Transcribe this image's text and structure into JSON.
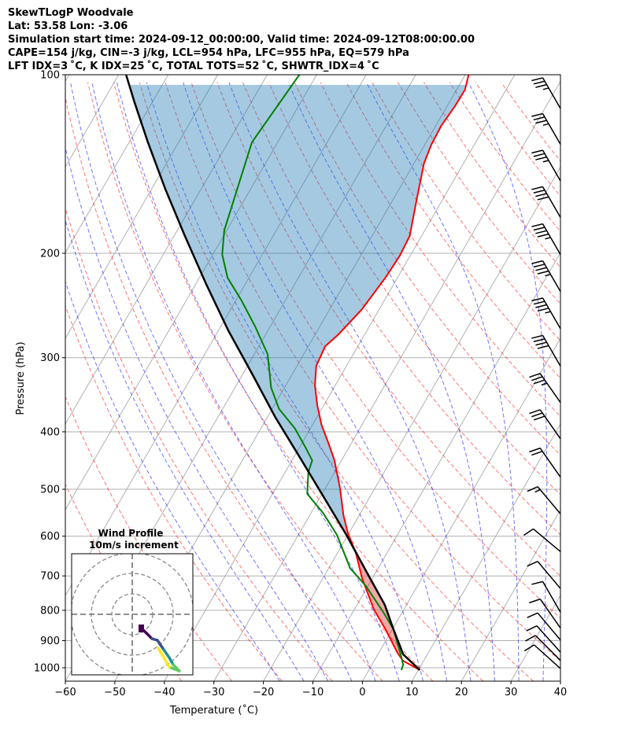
{
  "header": {
    "title": "SkewTLogP Woodvale",
    "location": "Lat: 53.58   Lon: -3.06",
    "times": "Simulation start time: 2024-09-12_00:00:00, Valid time: 2024-09-12T08:00:00.00",
    "indices1": "CAPE=154 j/kg, CIN=-3 j/kg, LCL=954 hPa, LFC=955 hPa, EQ=579 hPa",
    "indices2": "LFT IDX=3 ˚C, K IDX=25 ˚C, TOTAL TOTS=52 ˚C, SHWTR_IDX=4 ˚C"
  },
  "chart_data": {
    "type": "skewt",
    "xlabel": "Temperature (˚C)",
    "ylabel": "Pressure (hPa)",
    "xlim": [
      -60,
      40
    ],
    "ylim": [
      1053,
      100
    ],
    "xticks": [
      -60,
      -50,
      -40,
      -30,
      -20,
      -10,
      0,
      10,
      20,
      30,
      40
    ],
    "xtick_labels": [
      "−60",
      "−50",
      "−40",
      "−30",
      "−20",
      "−10",
      "0",
      "10",
      "20",
      "30",
      "40"
    ],
    "yticks": [
      100,
      200,
      300,
      400,
      500,
      600,
      700,
      800,
      900,
      1000
    ],
    "ytick_labels": [
      "100",
      "200",
      "300",
      "400",
      "500",
      "600",
      "700",
      "800",
      "900",
      "1000"
    ],
    "skew_degrees": 30,
    "colors": {
      "temperature": "#ff0000",
      "dewpoint": "#008000",
      "parcel": "#000000",
      "cape": "#1f77b4",
      "cin": "#d62728",
      "isotherm": "#b0b0b0",
      "dry_adiabat": "#ff0000",
      "moist_adiabat": "#0000ff"
    },
    "temperature": {
      "p": [
        1009,
        973,
        944,
        861,
        798,
        706,
        640,
        593,
        553,
        497,
        447,
        420,
        389,
        361,
        334,
        310,
        287,
        274,
        249,
        219,
        202,
        187,
        161,
        141,
        131,
        122,
        113,
        106,
        100
      ],
      "T": [
        10.3,
        5.8,
        3.8,
        -1.4,
        -6.0,
        -12.1,
        -16.3,
        -20.2,
        -23.2,
        -27.1,
        -31.4,
        -34.4,
        -38.2,
        -41.3,
        -44.1,
        -46.1,
        -46.6,
        -45.3,
        -43.5,
        -42.4,
        -42.1,
        -42.4,
        -45.4,
        -48.0,
        -48.7,
        -48.9,
        -48.4,
        -48.3,
        -49.3
      ]
    },
    "dewpoint": {
      "p": [
        1009,
        988,
        958,
        861,
        810,
        728,
        679,
        597,
        548,
        509,
        468,
        447,
        427,
        395,
        366,
        337,
        296,
        266,
        240,
        220,
        201,
        183,
        130,
        100
      ],
      "T": [
        6.6,
        6.3,
        5.0,
        0.2,
        -3.5,
        -10.4,
        -15.7,
        -22.2,
        -27.6,
        -33.0,
        -35.3,
        -35.9,
        -38.5,
        -43.1,
        -48.6,
        -52.7,
        -57.3,
        -63.0,
        -68.9,
        -74.3,
        -78.1,
        -80.5,
        -85.2,
        -83.5
      ]
    },
    "parcel": {
      "p": [
        1009,
        949,
        861,
        783,
        706,
        597,
        512,
        440,
        378,
        319,
        270,
        225,
        187,
        156,
        130,
        111,
        100
      ],
      "T": [
        10.3,
        5.1,
        0.2,
        -4.4,
        -10.5,
        -20.3,
        -29.7,
        -39.0,
        -48.4,
        -58.2,
        -68.0,
        -78.0,
        -87.8,
        -97.2,
        -106.2,
        -113.7,
        -118.5
      ]
    },
    "shading": {
      "positive_from_hpa": 949,
      "eq_hpa": 579,
      "top_hpa": 100
    },
    "wind_barbs": [
      {
        "p": 114,
        "speed_kt": 35,
        "dir": 330
      },
      {
        "p": 131,
        "speed_kt": 35,
        "dir": 330
      },
      {
        "p": 151,
        "speed_kt": 35,
        "dir": 330
      },
      {
        "p": 174,
        "speed_kt": 40,
        "dir": 330
      },
      {
        "p": 201,
        "speed_kt": 45,
        "dir": 330
      },
      {
        "p": 232,
        "speed_kt": 45,
        "dir": 330
      },
      {
        "p": 268,
        "speed_kt": 45,
        "dir": 330
      },
      {
        "p": 310,
        "speed_kt": 40,
        "dir": 330
      },
      {
        "p": 357,
        "speed_kt": 35,
        "dir": 325
      },
      {
        "p": 411,
        "speed_kt": 30,
        "dir": 325
      },
      {
        "p": 477,
        "speed_kt": 20,
        "dir": 325
      },
      {
        "p": 550,
        "speed_kt": 15,
        "dir": 320
      },
      {
        "p": 637,
        "speed_kt": 10,
        "dir": 310
      },
      {
        "p": 735,
        "speed_kt": 10,
        "dir": 320
      },
      {
        "p": 806,
        "speed_kt": 10,
        "dir": 330
      },
      {
        "p": 857,
        "speed_kt": 10,
        "dir": 325
      },
      {
        "p": 898,
        "speed_kt": 10,
        "dir": 320
      },
      {
        "p": 941,
        "speed_kt": 10,
        "dir": 318
      },
      {
        "p": 972,
        "speed_kt": 10,
        "dir": 315
      },
      {
        "p": 1003,
        "speed_kt": 10,
        "dir": 312
      }
    ],
    "hodograph": {
      "title": "Wind Profile",
      "subtitle": "10m/s increment",
      "ring_increment_ms": 10,
      "u": [
        5.0,
        6.9,
        9.6,
        12.3,
        15.4,
        18.1,
        20.0,
        23.0,
        18.1,
        15.4,
        12.7
      ],
      "v": [
        -7.3,
        -9.2,
        -11.9,
        -12.7,
        -17.3,
        -21.2,
        -24.6,
        -27.7,
        -25.8,
        -21.2,
        -16.5
      ]
    }
  }
}
